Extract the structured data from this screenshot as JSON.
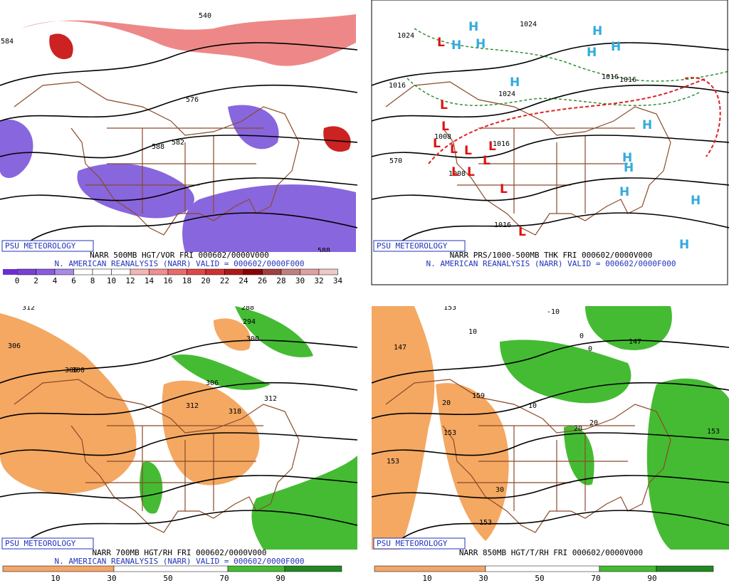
{
  "panels": [
    {
      "badge": "PSU METEOROLOGY",
      "line1": "NARR 500MB HGT/VOR FRI 000602/0000V000",
      "line2": "N. AMERICAN REANALYSIS (NARR) VALID = 000602/0000F000",
      "colorbar_labels": [
        "0",
        "2",
        "4",
        "6",
        "8",
        "10",
        "12",
        "14",
        "16",
        "18",
        "20",
        "22",
        "24",
        "26",
        "28",
        "30",
        "32",
        "34"
      ],
      "contour_labels": [
        "540",
        "584",
        "576",
        "588",
        "582",
        "588"
      ]
    },
    {
      "badge": "PSU METEOROLOGY",
      "line1": "NARR PRS/1000-500MB THK FRI 000602/0000V000",
      "line2": "N. AMERICAN REANALYSIS (NARR) VALID = 000602/0000F000",
      "colorbar_labels": [],
      "contour_labels": [
        "1024",
        "1024",
        "1016",
        "1024",
        "1016",
        "1016",
        "1008",
        "1008",
        "1016",
        "570",
        "1016"
      ],
      "highs": [
        "H",
        "H",
        "H",
        "H",
        "H",
        "H",
        "H",
        "H",
        "H",
        "H",
        "H",
        "H",
        "H"
      ],
      "lows": [
        "L",
        "L",
        "L",
        "L",
        "L",
        "L",
        "L",
        "L",
        "L",
        "L",
        "L",
        "L"
      ]
    },
    {
      "badge": "PSU METEOROLOGY",
      "line1": "NARR 700MB HGT/RH FRI 000602/0000V000",
      "line2": "N. AMERICAN REANALYSIS (NARR) VALID = 000602/0000F000",
      "colorbar_labels": [
        "10",
        "30",
        "50",
        "70",
        "90"
      ],
      "contour_labels": [
        "312",
        "306",
        "300",
        "294",
        "288",
        "306",
        "312",
        "318",
        "300",
        "306",
        "312"
      ]
    },
    {
      "badge": "PSU METEOROLOGY",
      "line1": "NARR 850MB HGT/T/RH FRI 000602/0000V000",
      "line2": "",
      "colorbar_labels": [
        "10",
        "30",
        "50",
        "70",
        "90"
      ],
      "contour_labels": [
        "153",
        "147",
        "153",
        "159",
        "153",
        "153",
        "10",
        "20",
        "20",
        "20",
        "10",
        "30",
        "-10",
        "0",
        "0",
        "147",
        "153"
      ]
    }
  ]
}
